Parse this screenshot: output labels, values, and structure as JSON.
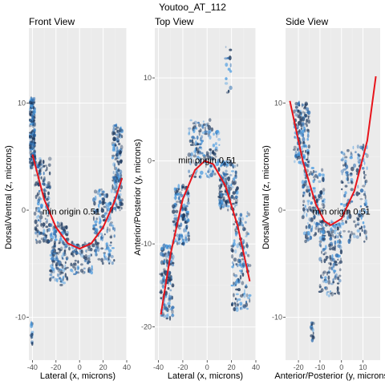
{
  "figure_title": "Youtoo_AT_112",
  "colors": {
    "panel_bg": "#ebebeb",
    "grid_major": "#ffffff",
    "grid_minor": "#f3f3f3",
    "points_dark": "#1f3a5f",
    "points_mid": "#2f6fb2",
    "points_light": "#4a9be0",
    "curve": "#e8141b"
  },
  "chart_data": [
    {
      "type": "scatter",
      "title": "Front View",
      "xlabel": "Lateral (x, microns)",
      "ylabel": "Dorsal/Ventral (z, microns)",
      "xlim": [
        -43,
        40
      ],
      "ylim": [
        -14,
        17
      ],
      "xticks": [
        -40,
        -20,
        0,
        20,
        40
      ],
      "yticks": [
        -10,
        0,
        10
      ],
      "annotation": {
        "text": "min origin 0.51",
        "x": -7,
        "y": -0.1
      },
      "fit_curve": {
        "type": "quadratic",
        "points": [
          [
            -40,
            5.2
          ],
          [
            -30,
            1.0
          ],
          [
            -20,
            -1.6
          ],
          [
            -10,
            -3.1
          ],
          [
            0,
            -3.6
          ],
          [
            10,
            -3.1
          ],
          [
            20,
            -1.6
          ],
          [
            30,
            0.9
          ],
          [
            36,
            3.0
          ]
        ]
      },
      "clusters": [
        {
          "x": [
            -42,
            -38
          ],
          "y": [
            4,
            10.5
          ],
          "density": "high"
        },
        {
          "x": [
            -38,
            -25
          ],
          "y": [
            -3,
            5
          ],
          "density": "high"
        },
        {
          "x": [
            -25,
            -10
          ],
          "y": [
            -7,
            -1
          ],
          "density": "high"
        },
        {
          "x": [
            -10,
            12
          ],
          "y": [
            -6,
            -3
          ],
          "density": "medium"
        },
        {
          "x": [
            12,
            30
          ],
          "y": [
            -5,
            2
          ],
          "density": "high"
        },
        {
          "x": [
            28,
            36
          ],
          "y": [
            0,
            8
          ],
          "density": "high"
        },
        {
          "x": [
            -41,
            -40
          ],
          "y": [
            -12.5,
            -10.5
          ],
          "density": "low"
        }
      ]
    },
    {
      "type": "scatter",
      "title": "Top View",
      "xlabel": "Lateral (x, microns)",
      "ylabel": "Anterior/Posterior (y, microns)",
      "xlim": [
        -43,
        40
      ],
      "ylim": [
        -24,
        16
      ],
      "xticks": [
        -40,
        -20,
        0,
        20,
        40
      ],
      "yticks": [
        -20,
        -10,
        0,
        10
      ],
      "annotation": {
        "text": "min origin 0.51",
        "x": 0,
        "y": 0.1
      },
      "fit_curve": {
        "type": "quadratic",
        "points": [
          [
            -38,
            -18.5
          ],
          [
            -30,
            -11.2
          ],
          [
            -20,
            -4.6
          ],
          [
            -10,
            -1.1
          ],
          [
            -2,
            0
          ],
          [
            5,
            -0.4
          ],
          [
            15,
            -3.0
          ],
          [
            25,
            -7.8
          ],
          [
            35,
            -14.5
          ]
        ]
      },
      "clusters": [
        {
          "x": [
            -38,
            -28
          ],
          "y": [
            -19,
            -10
          ],
          "density": "high"
        },
        {
          "x": [
            -28,
            -15
          ],
          "y": [
            -10,
            -3
          ],
          "density": "high"
        },
        {
          "x": [
            -15,
            10
          ],
          "y": [
            -2,
            5
          ],
          "density": "high"
        },
        {
          "x": [
            10,
            25
          ],
          "y": [
            -6,
            0
          ],
          "density": "high"
        },
        {
          "x": [
            20,
            35
          ],
          "y": [
            -18,
            -6
          ],
          "density": "high"
        },
        {
          "x": [
            15,
            20
          ],
          "y": [
            7,
            14
          ],
          "density": "low"
        }
      ]
    },
    {
      "type": "scatter",
      "title": "Side View",
      "xlabel": "Anterior/Posterior (y, microns)",
      "ylabel": "Dorsal/Ventral (z, microns)",
      "xlim": [
        -26,
        18
      ],
      "ylim": [
        -14,
        17
      ],
      "xticks": [
        -20,
        -10,
        0,
        10
      ],
      "yticks": [
        -10,
        0,
        10
      ],
      "annotation": {
        "text": "min origin 0.51",
        "x": 0,
        "y": -0.1
      },
      "fit_curve": {
        "type": "quadratic",
        "points": [
          [
            -24,
            10.2
          ],
          [
            -18,
            4.6
          ],
          [
            -12,
            0.6
          ],
          [
            -8,
            -1.0
          ],
          [
            -5,
            -1.4
          ],
          [
            0,
            -0.8
          ],
          [
            6,
            1.8
          ],
          [
            12,
            6.5
          ],
          [
            16,
            12.5
          ]
        ]
      },
      "clusters": [
        {
          "x": [
            -22,
            -15
          ],
          "y": [
            4,
            10
          ],
          "density": "high"
        },
        {
          "x": [
            -18,
            -8
          ],
          "y": [
            -3,
            4
          ],
          "density": "high"
        },
        {
          "x": [
            -10,
            0
          ],
          "y": [
            -8,
            -1
          ],
          "density": "high"
        },
        {
          "x": [
            0,
            12
          ],
          "y": [
            -3,
            6
          ],
          "density": "high"
        },
        {
          "x": [
            -14,
            -13
          ],
          "y": [
            -12.5,
            -10.5
          ],
          "density": "low"
        }
      ]
    }
  ]
}
